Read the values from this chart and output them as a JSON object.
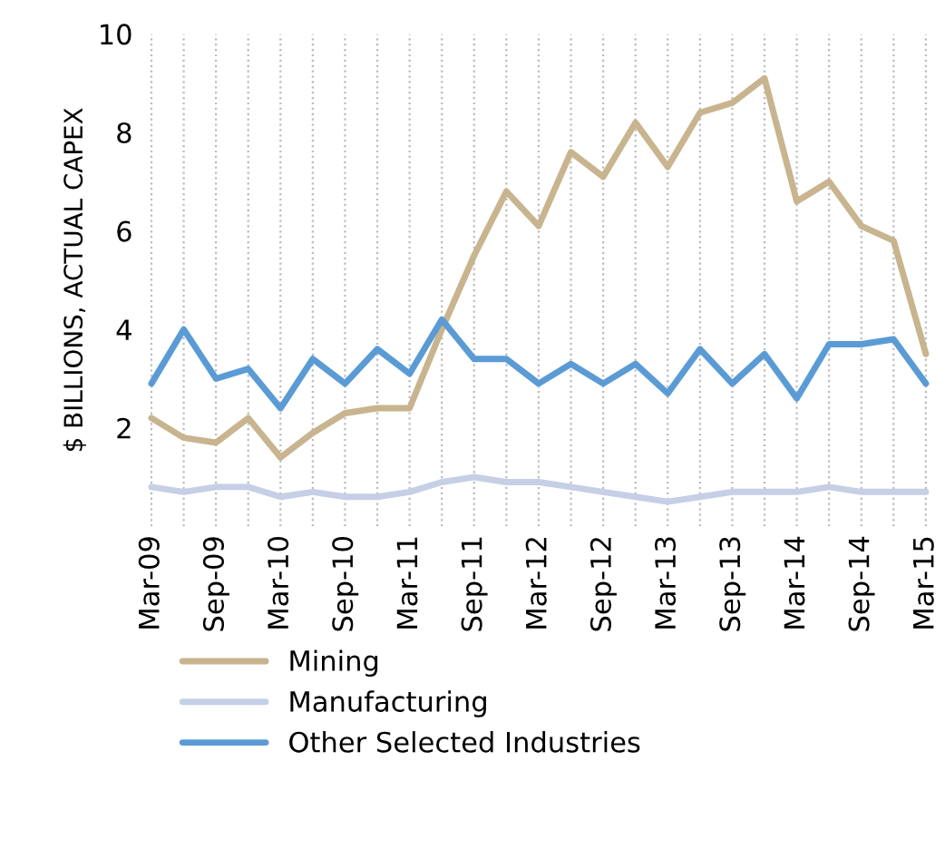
{
  "chart_data": {
    "type": "line",
    "ylabel": "$ BILLIONS, ACTUAL CAPEX",
    "categories": [
      "Mar-09",
      null,
      "Sep-09",
      null,
      "Mar-10",
      null,
      "Sep-10",
      null,
      "Mar-11",
      null,
      "Sep-11",
      null,
      "Mar-12",
      null,
      "Sep-12",
      null,
      "Mar-13",
      null,
      "Sep-13",
      null,
      "Mar-14",
      null,
      "Sep-14",
      null,
      "Mar-15"
    ],
    "series": [
      {
        "name": "Mining",
        "color": "#c8b48e",
        "values": [
          2.2,
          1.8,
          1.7,
          2.2,
          1.4,
          1.9,
          2.3,
          2.4,
          2.4,
          4.0,
          5.5,
          6.8,
          6.1,
          7.6,
          7.1,
          8.2,
          7.3,
          8.4,
          8.6,
          9.1,
          6.6,
          7.0,
          6.1,
          5.8,
          3.5
        ]
      },
      {
        "name": "Manufacturing",
        "color": "#c5cfe6",
        "values": [
          0.8,
          0.7,
          0.8,
          0.8,
          0.6,
          0.7,
          0.6,
          0.6,
          0.7,
          0.9,
          1.0,
          0.9,
          0.9,
          0.8,
          0.7,
          0.6,
          0.5,
          0.6,
          0.7,
          0.7,
          0.7,
          0.8,
          0.7,
          0.7,
          0.7
        ]
      },
      {
        "name": "Other Selected Industries",
        "color": "#5b9bd5",
        "values": [
          2.9,
          4.0,
          3.0,
          3.2,
          2.4,
          3.4,
          2.9,
          3.6,
          3.1,
          4.2,
          3.4,
          3.4,
          2.9,
          3.3,
          2.9,
          3.3,
          2.7,
          3.6,
          2.9,
          3.5,
          2.6,
          3.7,
          3.7,
          3.8,
          2.9
        ]
      }
    ],
    "ylim": [
      0,
      10
    ],
    "yticks": [
      2,
      4,
      6,
      8,
      10
    ],
    "grid": "x",
    "line_style": "solid",
    "legend": "bottom"
  }
}
